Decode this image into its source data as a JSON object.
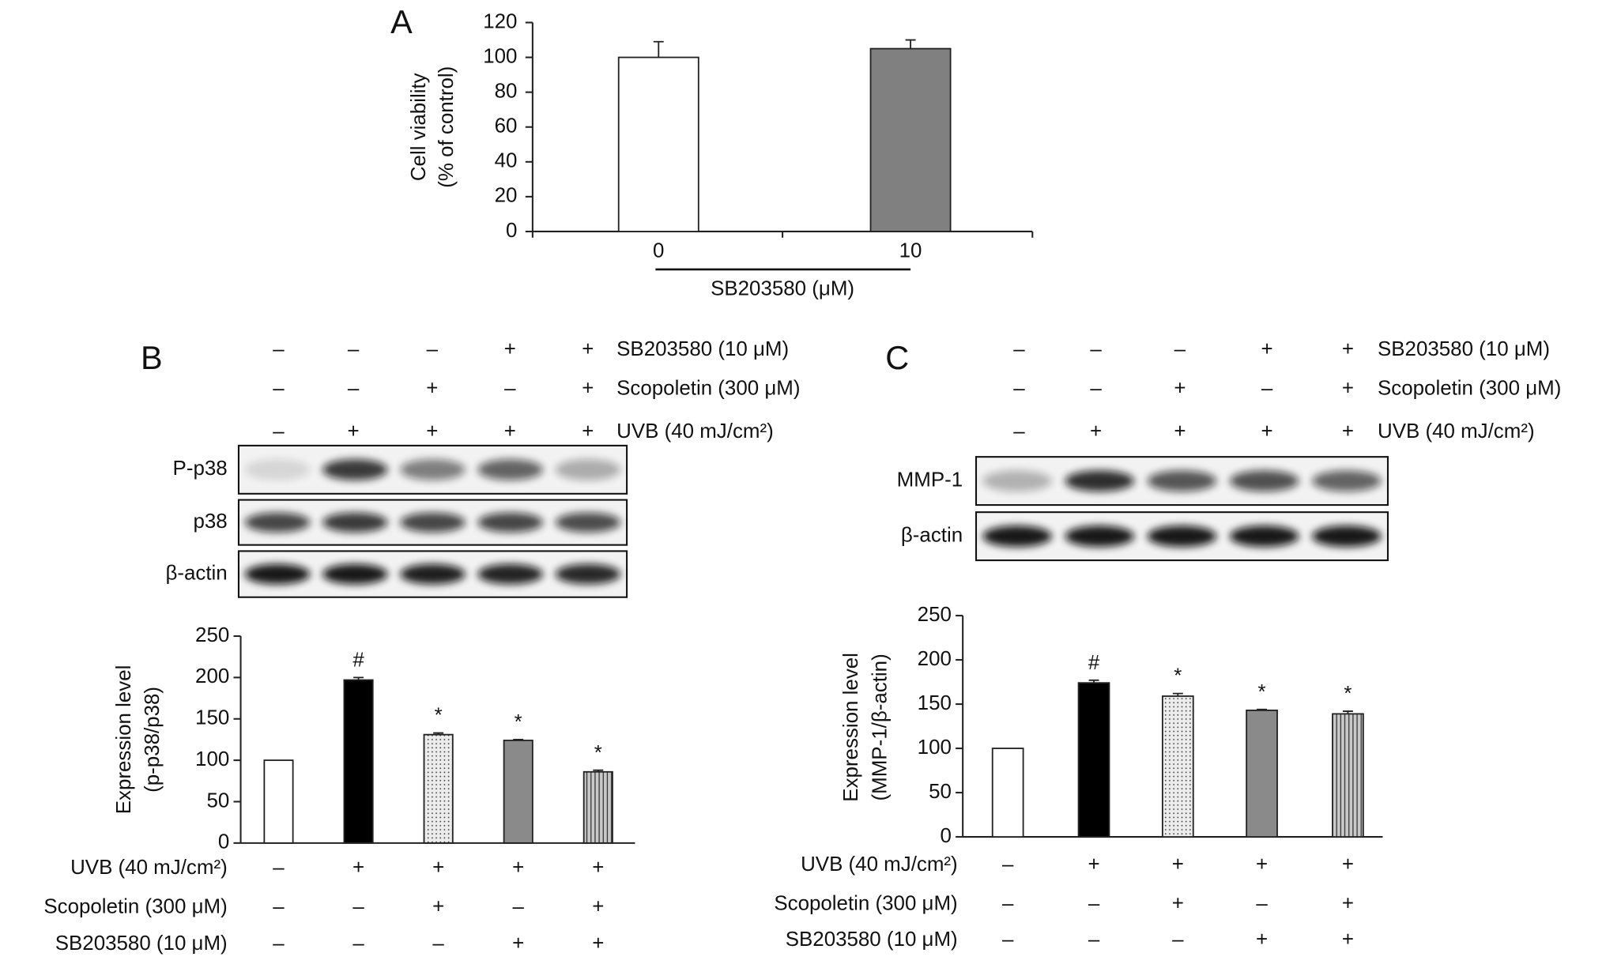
{
  "chart_data": [
    {
      "type": "bar",
      "panel": "A",
      "categories": [
        "0",
        "10"
      ],
      "values": [
        100,
        105
      ],
      "errors": [
        9,
        5
      ],
      "colors": [
        "#ffffff",
        "#808080"
      ],
      "patterns": [
        null,
        null
      ],
      "ylim": [
        0,
        120
      ],
      "yticks": [
        0,
        20,
        40,
        60,
        80,
        100,
        120
      ],
      "ylabel": [
        "Cell viability",
        "(% of control)"
      ],
      "xlabel": "SB203580 (μM)"
    },
    {
      "type": "bar",
      "panel": "B",
      "treatments_top": [
        {
          "label": "SB203580 (10 μM)",
          "signs": [
            "–",
            "–",
            "–",
            "+",
            "+"
          ]
        },
        {
          "label": "Scopoletin (300 μM)",
          "signs": [
            "–",
            "–",
            "+",
            "–",
            "+"
          ]
        },
        {
          "label": "UVB (40 mJ/cm²)",
          "signs": [
            "–",
            "+",
            "+",
            "+",
            "+"
          ]
        }
      ],
      "blots": [
        "P-p38",
        "p38",
        "β-actin"
      ],
      "values": [
        100,
        197,
        131,
        124,
        86
      ],
      "errors": [
        0,
        3,
        2,
        1,
        2
      ],
      "annotations": [
        null,
        "#",
        "*",
        "*",
        "*"
      ],
      "colors": [
        "#ffffff",
        "#000000",
        "#ececec",
        "#8a8a8a",
        "#c8c8c8"
      ],
      "patterns": [
        null,
        null,
        "dots",
        null,
        "vertical-stripes"
      ],
      "ylim": [
        0,
        250
      ],
      "yticks": [
        0,
        50,
        100,
        150,
        200,
        250
      ],
      "ylabel": [
        "Expression level",
        "(p-p38/p38)"
      ],
      "treatments_bottom": [
        {
          "label": "UVB (40 mJ/cm²)",
          "signs": [
            "–",
            "+",
            "+",
            "+",
            "+"
          ]
        },
        {
          "label": "Scopoletin (300 μM)",
          "signs": [
            "–",
            "–",
            "+",
            "–",
            "+"
          ]
        },
        {
          "label": "SB203580 (10 μM)",
          "signs": [
            "–",
            "–",
            "–",
            "+",
            "+"
          ]
        }
      ]
    },
    {
      "type": "bar",
      "panel": "C",
      "treatments_top": [
        {
          "label": "SB203580 (10 μM)",
          "signs": [
            "–",
            "–",
            "–",
            "+",
            "+"
          ]
        },
        {
          "label": "Scopoletin (300 μM)",
          "signs": [
            "–",
            "–",
            "+",
            "–",
            "+"
          ]
        },
        {
          "label": "UVB (40 mJ/cm²)",
          "signs": [
            "–",
            "+",
            "+",
            "+",
            "+"
          ]
        }
      ],
      "blots": [
        "MMP-1",
        "β-actin"
      ],
      "values": [
        100,
        174,
        159,
        143,
        139
      ],
      "errors": [
        0,
        3,
        3,
        1,
        3
      ],
      "annotations": [
        null,
        "#",
        "*",
        "*",
        "*"
      ],
      "colors": [
        "#ffffff",
        "#000000",
        "#ececec",
        "#8a8a8a",
        "#c8c8c8"
      ],
      "patterns": [
        null,
        null,
        "dots",
        null,
        "vertical-stripes"
      ],
      "ylim": [
        0,
        250
      ],
      "yticks": [
        0,
        50,
        100,
        150,
        200,
        250
      ],
      "ylabel": [
        "Expression level",
        "(MMP-1/β-actin)"
      ],
      "treatments_bottom": [
        {
          "label": "UVB (40 mJ/cm²)",
          "signs": [
            "–",
            "+",
            "+",
            "+",
            "+"
          ]
        },
        {
          "label": "Scopoletin (300 μM)",
          "signs": [
            "–",
            "–",
            "+",
            "–",
            "+"
          ]
        },
        {
          "label": "SB203580 (10 μM)",
          "signs": [
            "–",
            "–",
            "–",
            "+",
            "+"
          ]
        }
      ]
    }
  ]
}
